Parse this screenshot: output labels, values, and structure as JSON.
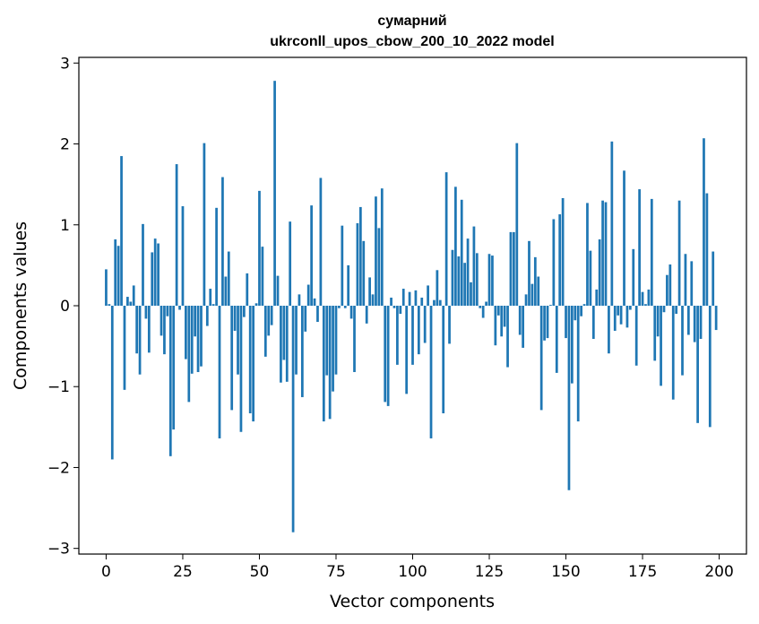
{
  "chart_data": {
    "type": "bar",
    "title": [
      "сумарний",
      "ukrconll_upos_cbow_200_10_2022 model"
    ],
    "xlabel": "Vector components",
    "ylabel": "Components values",
    "xlim": [
      -8.9,
      208.9
    ],
    "ylim": [
      -3.07,
      3.07
    ],
    "xticks": [
      0,
      25,
      50,
      75,
      100,
      125,
      150,
      175,
      200
    ],
    "yticks": [
      -3,
      -2,
      -1,
      0,
      1,
      2,
      3
    ],
    "ytick_labels": [
      "−3",
      "−2",
      "−1",
      "0",
      "1",
      "2",
      "3"
    ],
    "grid": false,
    "color": "#1f77b4",
    "values": [
      0.45,
      0.02,
      -1.9,
      0.82,
      0.74,
      1.85,
      -1.04,
      0.11,
      0.05,
      0.25,
      -0.59,
      -0.85,
      1.01,
      -0.16,
      -0.58,
      0.66,
      0.83,
      0.77,
      -0.37,
      -0.6,
      -0.13,
      -1.86,
      -1.53,
      1.75,
      -0.05,
      1.23,
      -0.66,
      -1.19,
      -0.84,
      -0.38,
      -0.82,
      -0.75,
      2.01,
      -0.25,
      0.21,
      0.02,
      1.21,
      -1.64,
      1.59,
      0.36,
      0.67,
      -1.29,
      -0.31,
      -0.85,
      -1.56,
      -0.14,
      0.4,
      -1.33,
      -1.43,
      0.03,
      1.42,
      0.73,
      -0.63,
      -0.37,
      -0.24,
      2.78,
      0.37,
      -0.95,
      -0.67,
      -0.94,
      1.04,
      -2.8,
      -0.85,
      0.14,
      -1.13,
      -0.32,
      0.26,
      1.24,
      0.09,
      -0.2,
      1.58,
      -1.43,
      -0.86,
      -1.4,
      -1.06,
      -0.85,
      -0.03,
      0.99,
      -0.03,
      0.5,
      -0.16,
      -0.82,
      1.02,
      1.22,
      0.8,
      -0.22,
      0.35,
      0.14,
      1.35,
      0.96,
      1.45,
      -1.19,
      -1.24,
      0.1,
      -0.03,
      -0.73,
      -0.1,
      0.21,
      -1.09,
      0.17,
      -0.73,
      0.19,
      -0.6,
      0.1,
      -0.46,
      0.25,
      -1.64,
      0.07,
      0.44,
      0.07,
      -1.33,
      1.65,
      -0.47,
      0.69,
      1.47,
      0.61,
      1.31,
      0.53,
      0.83,
      0.29,
      0.98,
      0.65,
      -0.03,
      -0.15,
      0.05,
      0.64,
      0.62,
      -0.49,
      -0.12,
      -0.38,
      -0.26,
      -0.76,
      0.91,
      0.91,
      2.01,
      -0.36,
      -0.52,
      0.14,
      0.8,
      0.27,
      0.6,
      0.36,
      -1.29,
      -0.43,
      -0.4,
      0.01,
      1.07,
      -0.83,
      1.13,
      1.33,
      -0.4,
      -2.28,
      -0.96,
      -0.18,
      -1.43,
      -0.13,
      0.02,
      1.27,
      0.68,
      -0.41,
      0.2,
      0.82,
      1.3,
      1.28,
      -0.59,
      2.03,
      -0.31,
      -0.12,
      -0.23,
      1.67,
      -0.27,
      -0.05,
      0.7,
      -0.74,
      1.44,
      0.17,
      0.02,
      0.2,
      1.32,
      -0.68,
      -0.38,
      -0.99,
      -0.08,
      0.38,
      0.51,
      -1.16,
      -0.1,
      1.3,
      -0.86,
      0.64,
      -0.36,
      0.55,
      -0.45,
      -1.45,
      -0.41,
      2.07,
      1.39,
      -1.5,
      0.67,
      -0.3
    ]
  }
}
